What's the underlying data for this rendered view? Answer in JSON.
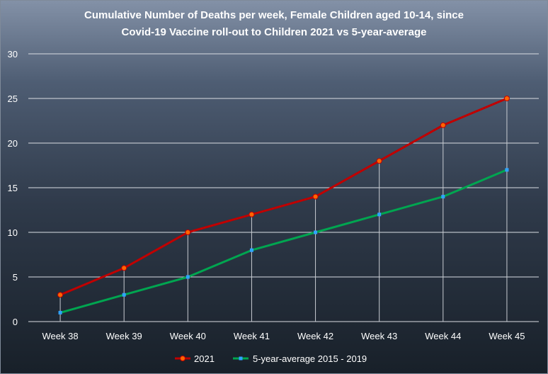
{
  "chart_data": {
    "type": "line",
    "title_lines": [
      "Cumulative Number of Deaths per week, Female Children aged 10-14, since",
      "Covid-19 Vaccine roll-out to Children 2021 vs 5-year-average"
    ],
    "categories": [
      "Week 38",
      "Week 39",
      "Week 40",
      "Week 41",
      "Week 42",
      "Week 43",
      "Week 44",
      "Week 45"
    ],
    "y_ticks": [
      "0",
      "5",
      "10",
      "15",
      "20",
      "25",
      "30"
    ],
    "ylim": [
      0,
      30
    ],
    "grid": true,
    "legend_position": "bottom",
    "series": [
      {
        "name": "2021",
        "values": [
          3,
          6,
          10,
          12,
          14,
          18,
          22,
          25
        ],
        "line_color": "#c00000",
        "marker_color": "#ff6600"
      },
      {
        "name": "5-year-average 2015 - 2019",
        "values": [
          1,
          3,
          5,
          8,
          10,
          12,
          14,
          17
        ],
        "line_color": "#00a550",
        "marker_color": "#2ea3ff"
      }
    ]
  }
}
